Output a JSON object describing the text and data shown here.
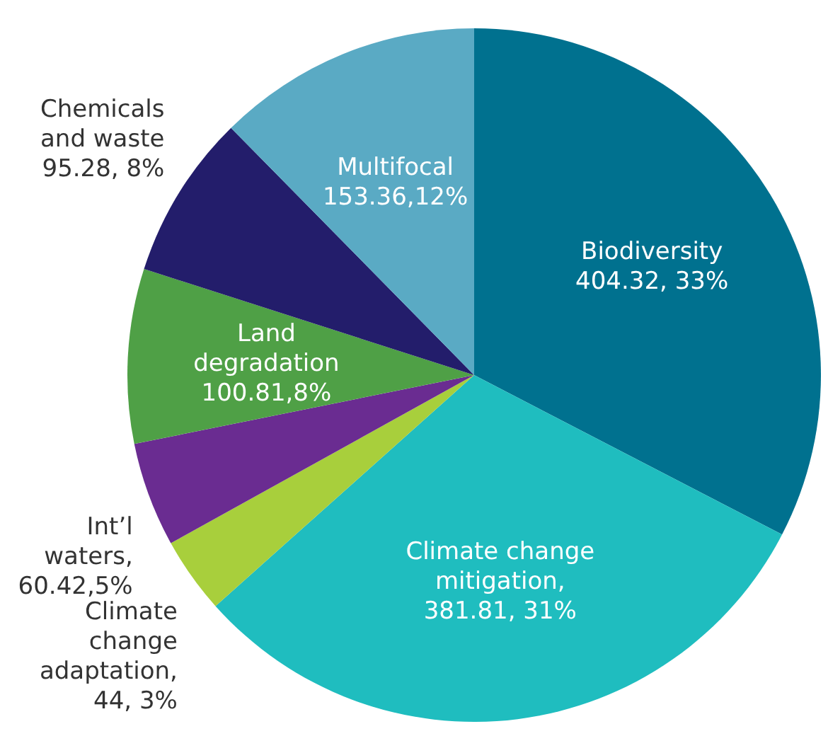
{
  "chart_data": {
    "type": "pie",
    "categories": [
      "Biodiversity",
      "Climate change\nmitigation",
      "Climate\nchange\nadaptation",
      "Int’l\nwaters",
      "Land\ndegradation",
      "Chemicals\nand waste",
      "Multifocal"
    ],
    "values": [
      404.32,
      381.81,
      44,
      60.42,
      100.81,
      95.28,
      153.36
    ],
    "value_labels": [
      "404.32, 33%",
      ",\n381.81, 31%",
      ",\n44, 3%",
      ",\n60.42,5%",
      "100.81,8%",
      "95.28, 8%",
      "153.36,12%"
    ],
    "colors": [
      "#00718f",
      "#1fbdbf",
      "#a8cf3c",
      "#6a2c91",
      "#4fa046",
      "#231d6b",
      "#5aaac4"
    ]
  }
}
